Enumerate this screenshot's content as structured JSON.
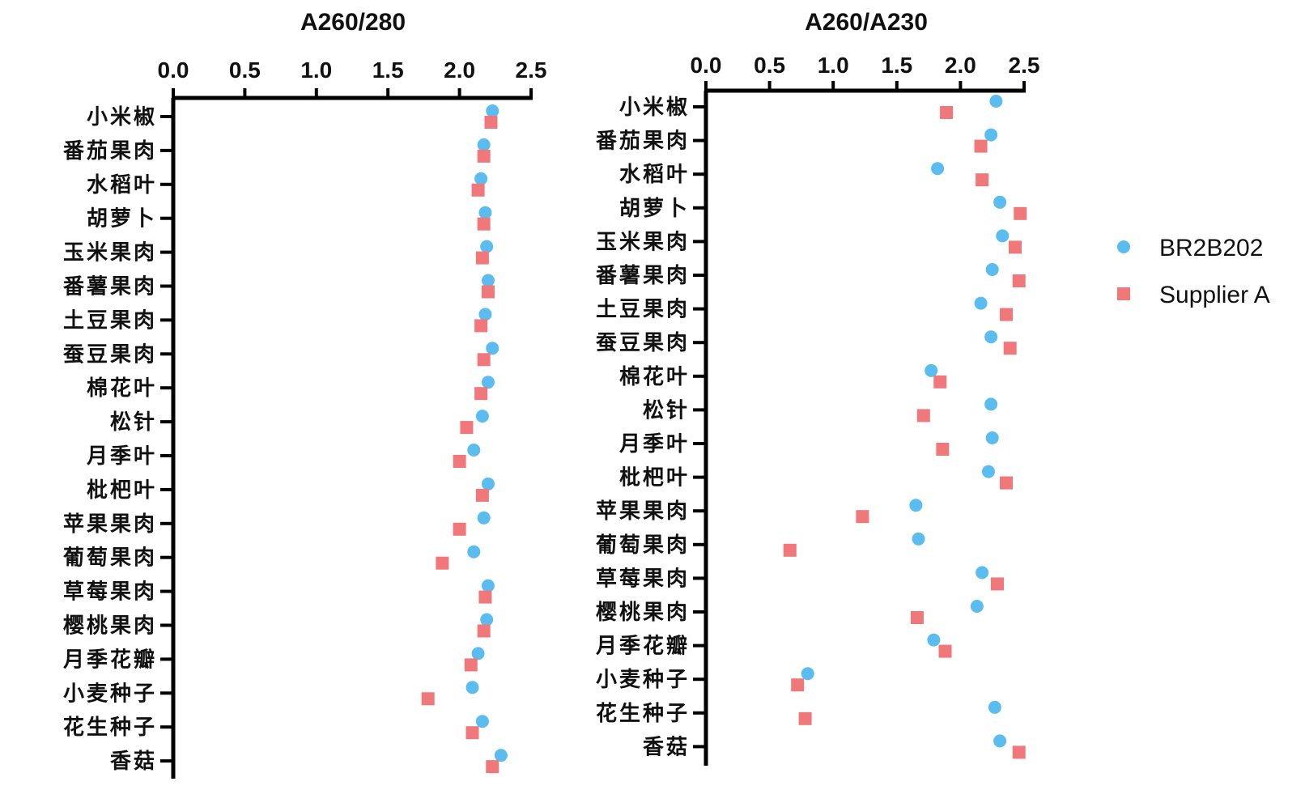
{
  "chart_data": [
    {
      "type": "scatter",
      "title": "A260/280",
      "xlim": [
        0,
        2.5
      ],
      "xticks": [
        "0.0",
        "0.5",
        "1.0",
        "1.5",
        "2.0",
        "2.5"
      ],
      "categories": [
        "小米椒",
        "番茄果肉",
        "水稻叶",
        "胡萝卜",
        "玉米果肉",
        "番薯果肉",
        "土豆果肉",
        "蚕豆果肉",
        "棉花叶",
        "松针",
        "月季叶",
        "枇杷叶",
        "苹果果肉",
        "葡萄果肉",
        "草莓果肉",
        "樱桃果肉",
        "月季花瓣",
        "小麦种子",
        "花生种子",
        "香菇"
      ],
      "series": [
        {
          "name": "BR2B202",
          "color": "#5bbcf0",
          "marker": "circle",
          "values": [
            2.23,
            2.17,
            2.15,
            2.18,
            2.19,
            2.2,
            2.18,
            2.23,
            2.2,
            2.16,
            2.1,
            2.2,
            2.17,
            2.1,
            2.2,
            2.19,
            2.13,
            2.09,
            2.16,
            2.29
          ]
        },
        {
          "name": "Supplier A",
          "color": "#f0787a",
          "marker": "square",
          "values": [
            2.22,
            2.17,
            2.13,
            2.17,
            2.16,
            2.2,
            2.15,
            2.17,
            2.15,
            2.05,
            2.0,
            2.16,
            2.0,
            1.88,
            2.18,
            2.17,
            2.08,
            1.78,
            2.09,
            2.23
          ]
        }
      ]
    },
    {
      "type": "scatter",
      "title": "A260/A230",
      "xlim": [
        0,
        2.5
      ],
      "xticks": [
        "0.0",
        "0.5",
        "1.0",
        "1.5",
        "2.0",
        "2.5"
      ],
      "categories": [
        "小米椒",
        "番茄果肉",
        "水稻叶",
        "胡萝卜",
        "玉米果肉",
        "番薯果肉",
        "土豆果肉",
        "蚕豆果肉",
        "棉花叶",
        "松针",
        "月季叶",
        "枇杷叶",
        "苹果果肉",
        "葡萄果肉",
        "草莓果肉",
        "樱桃果肉",
        "月季花瓣",
        "小麦种子",
        "花生种子",
        "香菇"
      ],
      "series": [
        {
          "name": "BR2B202",
          "color": "#5bbcf0",
          "marker": "circle",
          "values": [
            2.28,
            2.24,
            1.82,
            2.31,
            2.33,
            2.25,
            2.16,
            2.24,
            1.77,
            2.24,
            2.25,
            2.22,
            1.65,
            1.67,
            2.17,
            2.13,
            1.79,
            0.8,
            2.27,
            2.31
          ]
        },
        {
          "name": "Supplier A",
          "color": "#f0787a",
          "marker": "square",
          "values": [
            1.89,
            2.16,
            2.17,
            2.47,
            2.43,
            2.46,
            2.36,
            2.39,
            1.84,
            1.71,
            1.86,
            2.36,
            1.23,
            0.66,
            2.29,
            1.66,
            1.88,
            0.72,
            0.78,
            2.46
          ]
        }
      ]
    }
  ],
  "legend": {
    "items": [
      {
        "name": "BR2B202",
        "color": "#5bbcf0",
        "marker": "circle"
      },
      {
        "name": "Supplier A",
        "color": "#f0787a",
        "marker": "square"
      }
    ]
  }
}
